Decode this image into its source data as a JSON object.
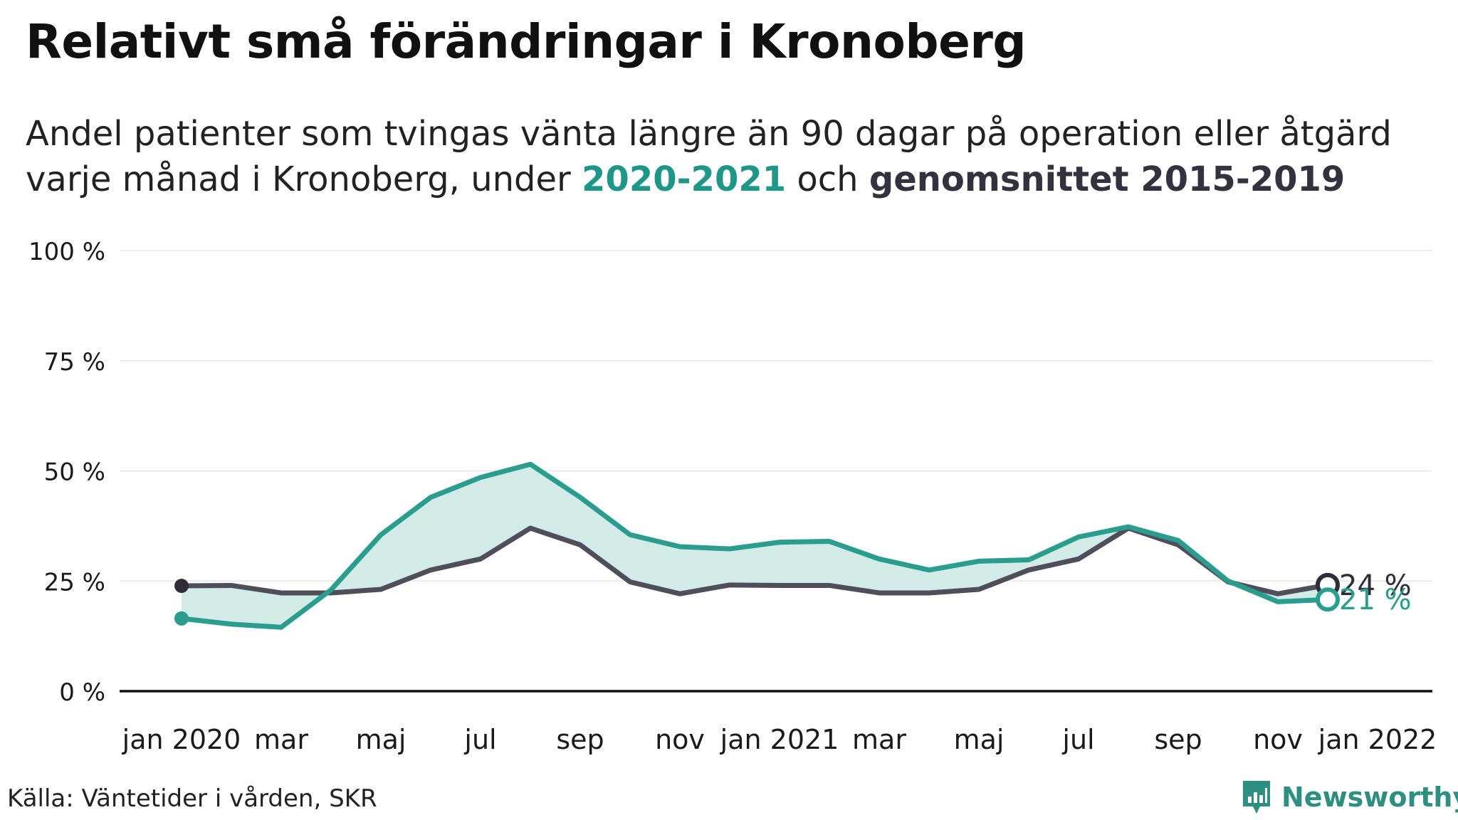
{
  "header": {
    "title": "Relativt små förändringar i Kronoberg",
    "subtitle_part1": "Andel patienter som tvingas vänta längre än 90 dagar på operation eller åtgärd",
    "subtitle_part2": "varje månad i Kronoberg, under ",
    "subtitle_highlight_2020": "2020-2021",
    "subtitle_and": " och ",
    "subtitle_highlight_avg": "genomsnittet 2015-2019"
  },
  "footer": {
    "source": "Källa: Väntetider i vården, SKR",
    "brand": "Newsworthy"
  },
  "colors": {
    "series_2020": "#2a9d8f",
    "series_avg": "#4f4e5a",
    "fill": "#d2ebe7",
    "axis": "#111111",
    "grid": "#e6e6e6"
  },
  "icons": {
    "brand": "bar-chart-speech-bubble-icon"
  },
  "chart_data": {
    "type": "line",
    "x": [
      "2020-01",
      "2020-02",
      "2020-03",
      "2020-04",
      "2020-05",
      "2020-06",
      "2020-07",
      "2020-08",
      "2020-09",
      "2020-10",
      "2020-11",
      "2020-12",
      "2021-01",
      "2021-02",
      "2021-03",
      "2021-04",
      "2021-05",
      "2021-06",
      "2021-07",
      "2021-08",
      "2021-09",
      "2021-10",
      "2021-11",
      "2021-12"
    ],
    "x_ticks": [
      {
        "x": "2020-01",
        "label": "jan 2020"
      },
      {
        "x": "2020-03",
        "label": "mar"
      },
      {
        "x": "2020-05",
        "label": "maj"
      },
      {
        "x": "2020-07",
        "label": "jul"
      },
      {
        "x": "2020-09",
        "label": "sep"
      },
      {
        "x": "2020-11",
        "label": "nov"
      },
      {
        "x": "2021-01",
        "label": "jan 2021"
      },
      {
        "x": "2021-03",
        "label": "mar"
      },
      {
        "x": "2021-05",
        "label": "maj"
      },
      {
        "x": "2021-07",
        "label": "jul"
      },
      {
        "x": "2021-09",
        "label": "sep"
      },
      {
        "x": "2021-11",
        "label": "nov"
      },
      {
        "x": "2022-01",
        "label": "jan 2022"
      }
    ],
    "y_ticks": [
      {
        "value": 0,
        "label": "0 %"
      },
      {
        "value": 25,
        "label": "25 %"
      },
      {
        "value": 50,
        "label": "50 %"
      },
      {
        "value": 75,
        "label": "75 %"
      },
      {
        "value": 100,
        "label": "100 %"
      }
    ],
    "ylim": [
      0,
      100
    ],
    "grid": true,
    "series": [
      {
        "name": "2020-2021",
        "color": "#2a9d8f",
        "values": [
          16.5,
          15.2,
          14.5,
          23.0,
          35.5,
          44.0,
          48.5,
          51.5,
          44.0,
          35.5,
          32.8,
          32.3,
          33.8,
          34.0,
          30.0,
          27.5,
          29.5,
          29.8,
          35.0,
          37.3,
          34.2,
          25.0,
          20.3,
          20.8
        ],
        "end_label": "21 %"
      },
      {
        "name": "genomsnittet 2015-2019",
        "color": "#4f4e5a",
        "values": [
          23.9,
          24.0,
          22.3,
          22.3,
          23.1,
          27.5,
          30.0,
          37.0,
          33.2,
          24.8,
          22.1,
          24.1,
          24.0,
          24.0,
          22.3,
          22.3,
          23.1,
          27.5,
          30.0,
          37.0,
          33.2,
          24.8,
          22.1,
          24.1
        ],
        "end_label": "24 %"
      }
    ]
  }
}
